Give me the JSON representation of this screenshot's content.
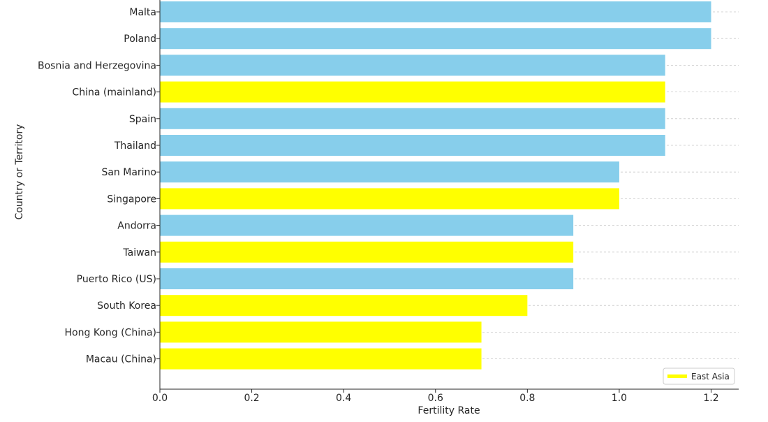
{
  "chart_data": {
    "type": "bar",
    "orientation": "horizontal",
    "title": "",
    "xlabel": "Fertility Rate",
    "ylabel": "Country or Territory",
    "xlim": [
      0,
      1.26
    ],
    "xticks": [
      "0.0",
      "0.2",
      "0.4",
      "0.6",
      "0.8",
      "1.0",
      "1.2"
    ],
    "grid": "horizontal dashed",
    "legend": {
      "placement": "bottom-right",
      "entries": [
        {
          "label": "East Asia",
          "color": "#ffff00"
        }
      ]
    },
    "colors": {
      "default": "#87ceeb",
      "east_asia": "#ffff00"
    },
    "bars": [
      {
        "label": "Malta",
        "value": 1.2,
        "group": "default"
      },
      {
        "label": "Poland",
        "value": 1.2,
        "group": "default"
      },
      {
        "label": "Bosnia and Herzegovina",
        "value": 1.1,
        "group": "default"
      },
      {
        "label": "China (mainland)",
        "value": 1.1,
        "group": "east_asia"
      },
      {
        "label": "Spain",
        "value": 1.1,
        "group": "default"
      },
      {
        "label": "Thailand",
        "value": 1.1,
        "group": "default"
      },
      {
        "label": "San Marino",
        "value": 1.0,
        "group": "default"
      },
      {
        "label": "Singapore",
        "value": 1.0,
        "group": "east_asia"
      },
      {
        "label": "Andorra",
        "value": 0.9,
        "group": "default"
      },
      {
        "label": "Taiwan",
        "value": 0.9,
        "group": "east_asia"
      },
      {
        "label": "Puerto Rico (US)",
        "value": 0.9,
        "group": "default"
      },
      {
        "label": "South Korea",
        "value": 0.8,
        "group": "east_asia"
      },
      {
        "label": "Hong Kong (China)",
        "value": 0.7,
        "group": "east_asia"
      },
      {
        "label": "Macau (China)",
        "value": 0.7,
        "group": "east_asia"
      }
    ]
  }
}
